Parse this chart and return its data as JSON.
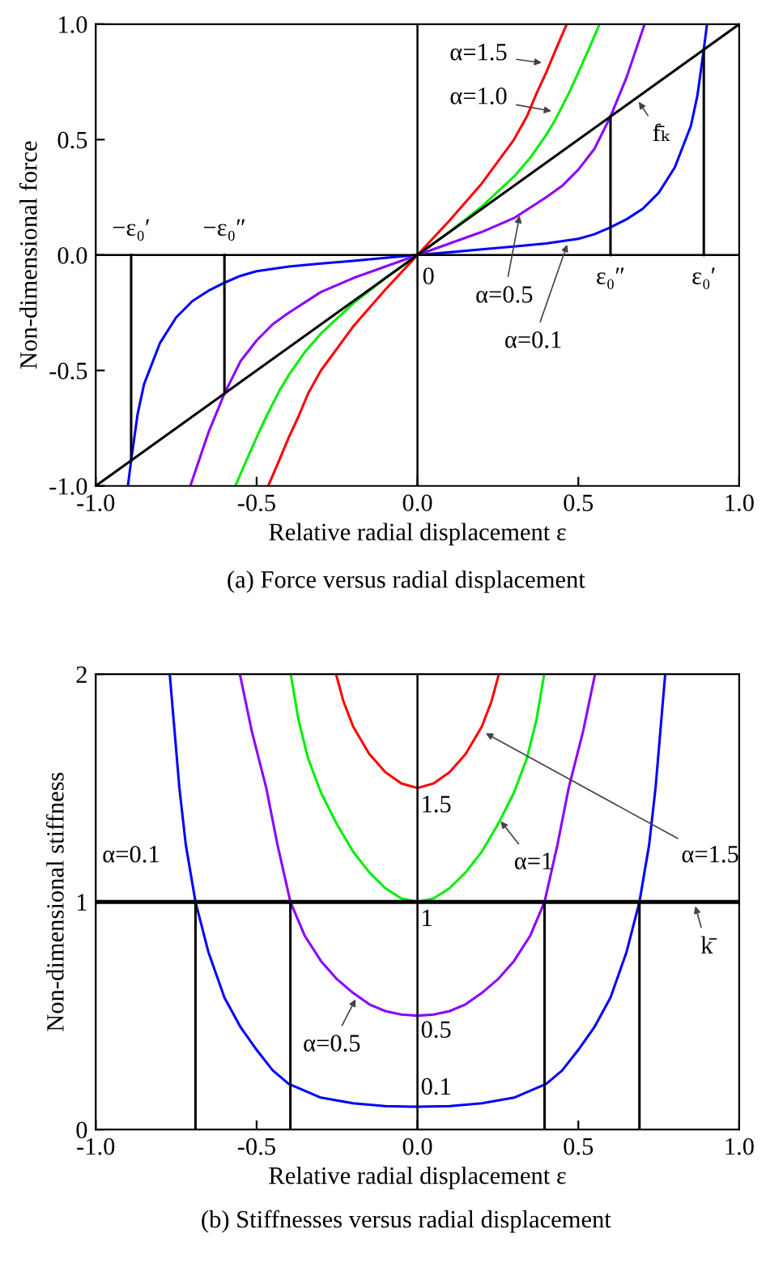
{
  "chart_data": [
    {
      "type": "line",
      "title": "(a) Force versus radial displacement",
      "xlabel": "Relative radial displacement ε",
      "ylabel": "Non-dimensional force",
      "xlim": [
        -1,
        1
      ],
      "xticks": [
        {
          "value": -1,
          "label": "-1.0"
        },
        {
          "value": -0.5,
          "label": "-0.5"
        },
        {
          "value": 0,
          "label": "0.0"
        },
        {
          "value": 0.5,
          "label": "0.5"
        },
        {
          "value": 1,
          "label": "1.0"
        }
      ],
      "ylim": [
        -1,
        1
      ],
      "yticks": [
        {
          "value": -1,
          "label": "-1.0"
        },
        {
          "value": -0.5,
          "label": "-0.5"
        },
        {
          "value": 0,
          "label": "0.0"
        },
        {
          "value": 0.5,
          "label": "0.5"
        },
        {
          "value": 1,
          "label": "1.0"
        }
      ],
      "grid": false,
      "legend": false,
      "series": [
        {
          "color": "#0000ff",
          "x": [
            -0.9,
            -0.89,
            -0.87,
            -0.85,
            -0.8,
            -0.75,
            -0.7,
            -0.65,
            -0.6,
            -0.55,
            -0.5,
            -0.4,
            -0.3,
            -0.2,
            -0.1,
            0,
            0.1,
            0.2,
            0.3,
            0.4,
            0.5,
            0.55,
            0.6,
            0.65,
            0.7,
            0.75,
            0.8,
            0.85,
            0.87,
            0.89,
            0.9
          ],
          "values": [
            -1.0,
            -0.89,
            -0.69,
            -0.56,
            -0.38,
            -0.27,
            -0.2,
            -0.155,
            -0.12,
            -0.09,
            -0.07,
            -0.05,
            -0.037,
            -0.025,
            -0.012,
            0,
            0.012,
            0.025,
            0.037,
            0.05,
            0.07,
            0.09,
            0.12,
            0.155,
            0.2,
            0.27,
            0.38,
            0.56,
            0.69,
            0.89,
            1.0
          ]
        },
        {
          "color": "#8b00ff",
          "x": [
            -0.706,
            -0.65,
            -0.6,
            -0.55,
            -0.5,
            -0.45,
            -0.4,
            -0.3,
            -0.2,
            -0.1,
            0,
            0.1,
            0.2,
            0.3,
            0.4,
            0.45,
            0.5,
            0.55,
            0.6,
            0.65,
            0.706
          ],
          "values": [
            -1.0,
            -0.77,
            -0.6,
            -0.46,
            -0.37,
            -0.3,
            -0.25,
            -0.16,
            -0.1,
            -0.05,
            0,
            0.05,
            0.1,
            0.16,
            0.25,
            0.3,
            0.37,
            0.46,
            0.6,
            0.77,
            1.0
          ]
        },
        {
          "color": "#00ee00",
          "x": [
            -0.566,
            -0.535,
            -0.5,
            -0.47,
            -0.43,
            -0.4,
            -0.35,
            -0.3,
            -0.2,
            -0.1,
            0,
            0.1,
            0.2,
            0.3,
            0.35,
            0.4,
            0.43,
            0.47,
            0.5,
            0.535,
            0.566
          ],
          "values": [
            -1.0,
            -0.9,
            -0.79,
            -0.7,
            -0.59,
            -0.52,
            -0.42,
            -0.34,
            -0.21,
            -0.1,
            0,
            0.1,
            0.21,
            0.34,
            0.42,
            0.52,
            0.59,
            0.7,
            0.79,
            0.9,
            1.0
          ]
        },
        {
          "color": "#ff0000",
          "x": [
            -0.464,
            -0.43,
            -0.4,
            -0.37,
            -0.34,
            -0.3,
            -0.2,
            -0.1,
            0,
            0.1,
            0.2,
            0.3,
            0.34,
            0.37,
            0.4,
            0.43,
            0.464
          ],
          "values": [
            -1.0,
            -0.89,
            -0.79,
            -0.7,
            -0.6,
            -0.5,
            -0.31,
            -0.15,
            0,
            0.15,
            0.31,
            0.5,
            0.6,
            0.7,
            0.79,
            0.89,
            1.0
          ]
        },
        {
          "color": "#000000",
          "x": [
            -1,
            1
          ],
          "values": [
            -1,
            1
          ]
        },
        {
          "color": "#000000",
          "x": [
            -0.89,
            -0.89
          ],
          "values": [
            0,
            -0.89
          ]
        },
        {
          "color": "#000000",
          "x": [
            -0.6,
            -0.6
          ],
          "values": [
            0,
            -0.6
          ]
        },
        {
          "color": "#000000",
          "x": [
            0.6,
            0.6
          ],
          "values": [
            0,
            0.6
          ]
        },
        {
          "color": "#000000",
          "x": [
            0.89,
            0.89
          ],
          "values": [
            0,
            0.89
          ]
        }
      ],
      "ref_lines": [
        {
          "axis": "x",
          "value": 0,
          "color": "#000000"
        },
        {
          "axis": "y",
          "value": 0,
          "color": "#000000"
        }
      ],
      "annotations": [
        {
          "text": "α=1.5",
          "x": 0.4,
          "y": 0.83
        },
        {
          "text": "α=1.0",
          "x": 0.43,
          "y": 0.62
        },
        {
          "text": "f̄ₖ",
          "x": 0.68,
          "y": 0.68
        },
        {
          "text": "α=0.5",
          "x": 0.32,
          "y": 0.19
        },
        {
          "text": "α=0.1",
          "x": 0.47,
          "y": 0.064
        },
        {
          "text": "0",
          "x": 0,
          "y": 0
        },
        {
          "text": "ε₀″",
          "x": 0.6,
          "y": 0
        },
        {
          "text": "ε₀′",
          "x": 0.89,
          "y": 0
        },
        {
          "text": "−ε₀″",
          "x": -0.6,
          "y": 0
        },
        {
          "text": "−ε₀′",
          "x": -0.89,
          "y": 0
        }
      ]
    },
    {
      "type": "line",
      "title": "(b) Stiffnesses versus radial displacement",
      "xlabel": "Relative radial displacement ε",
      "ylabel": "Non-dimensional stiffness",
      "xlim": [
        -1,
        1
      ],
      "xticks": [
        {
          "value": -1,
          "label": "-1.0"
        },
        {
          "value": -0.5,
          "label": "-0.5"
        },
        {
          "value": 0,
          "label": "0.0"
        },
        {
          "value": 0.5,
          "label": "0.5"
        },
        {
          "value": 1,
          "label": "1.0"
        }
      ],
      "ylim": [
        0,
        2
      ],
      "yticks": [
        0,
        1,
        2
      ],
      "grid": false,
      "legend": false,
      "series": [
        {
          "color": "#0000ff",
          "x": [
            -0.77,
            -0.755,
            -0.74,
            -0.72,
            -0.69,
            -0.65,
            -0.6,
            -0.55,
            -0.5,
            -0.45,
            -0.4,
            -0.3,
            -0.2,
            -0.1,
            0,
            0.1,
            0.2,
            0.3,
            0.4,
            0.45,
            0.5,
            0.55,
            0.6,
            0.65,
            0.69,
            0.72,
            0.74,
            0.755,
            0.77
          ],
          "values": [
            2,
            1.75,
            1.5,
            1.25,
            1.0,
            0.78,
            0.58,
            0.45,
            0.35,
            0.26,
            0.2,
            0.14,
            0.115,
            0.103,
            0.1,
            0.103,
            0.115,
            0.14,
            0.2,
            0.26,
            0.35,
            0.45,
            0.58,
            0.78,
            1.0,
            1.25,
            1.5,
            1.75,
            2
          ]
        },
        {
          "color": "#8b00ff",
          "x": [
            -0.552,
            -0.515,
            -0.47,
            -0.435,
            -0.395,
            -0.35,
            -0.3,
            -0.25,
            -0.2,
            -0.15,
            -0.1,
            -0.05,
            0,
            0.05,
            0.1,
            0.15,
            0.2,
            0.25,
            0.3,
            0.35,
            0.395,
            0.435,
            0.47,
            0.515,
            0.552
          ],
          "values": [
            2,
            1.75,
            1.5,
            1.25,
            1.0,
            0.85,
            0.74,
            0.66,
            0.6,
            0.55,
            0.52,
            0.505,
            0.5,
            0.505,
            0.52,
            0.55,
            0.6,
            0.66,
            0.74,
            0.85,
            1.0,
            1.25,
            1.5,
            1.75,
            2
          ]
        },
        {
          "color": "#00ee00",
          "x": [
            -0.394,
            -0.37,
            -0.34,
            -0.3,
            -0.25,
            -0.2,
            -0.15,
            -0.1,
            -0.05,
            0,
            0.05,
            0.1,
            0.15,
            0.2,
            0.25,
            0.3,
            0.34,
            0.37,
            0.394
          ],
          "values": [
            2,
            1.8,
            1.63,
            1.48,
            1.34,
            1.22,
            1.13,
            1.06,
            1.015,
            1.0,
            1.015,
            1.06,
            1.13,
            1.22,
            1.34,
            1.48,
            1.63,
            1.8,
            2
          ]
        },
        {
          "color": "#ff0000",
          "x": [
            -0.253,
            -0.23,
            -0.2,
            -0.15,
            -0.1,
            -0.05,
            0,
            0.05,
            0.1,
            0.15,
            0.2,
            0.23,
            0.253
          ],
          "values": [
            2,
            1.88,
            1.77,
            1.65,
            1.57,
            1.52,
            1.5,
            1.52,
            1.57,
            1.65,
            1.77,
            1.88,
            2
          ]
        },
        {
          "color": "#000000",
          "x": [
            -0.69,
            -0.69
          ],
          "values": [
            0,
            1
          ]
        },
        {
          "color": "#000000",
          "x": [
            -0.395,
            -0.395
          ],
          "values": [
            0,
            1
          ]
        },
        {
          "color": "#000000",
          "x": [
            0.395,
            0.395
          ],
          "values": [
            0,
            1
          ]
        },
        {
          "color": "#000000",
          "x": [
            0.69,
            0.69
          ],
          "values": [
            0,
            1
          ]
        }
      ],
      "ref_lines": [
        {
          "axis": "x",
          "value": 0,
          "color": "#000000"
        },
        {
          "axis": "y",
          "value": 1,
          "color": "#000000"
        }
      ],
      "annotations": [
        {
          "text": "α=0.1",
          "x": -0.72,
          "y": 1.2
        },
        {
          "text": "1.5",
          "x": 0,
          "y": 1.5
        },
        {
          "text": "1",
          "x": 0,
          "y": 1
        },
        {
          "text": "0.5",
          "x": 0,
          "y": 0.5
        },
        {
          "text": "0.1",
          "x": 0,
          "y": 0.1
        },
        {
          "text": "α=1",
          "x": 0.25,
          "y": 1.37
        },
        {
          "text": "α=1.5",
          "x": 0.2,
          "y": 1.75
        },
        {
          "text": "α=0.5",
          "x": -0.186,
          "y": 0.59
        },
        {
          "text": "k̄",
          "x": 0.86,
          "y": 1
        }
      ]
    }
  ]
}
